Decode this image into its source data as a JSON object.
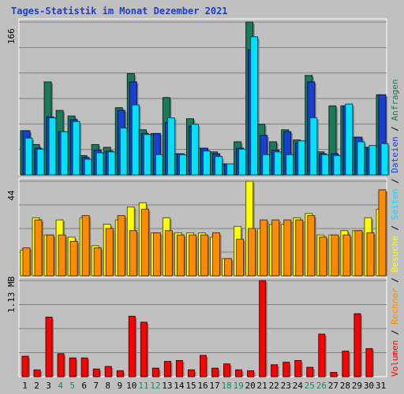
{
  "window": {
    "title": "Tages-Statistik im Monat Dezember 2021"
  },
  "colors": {
    "background": "#c0c0c0",
    "plot_background": "#c0c0c0",
    "gridline": "#808080",
    "title": "#1a3fd0",
    "anfragen": "#1a7a5a",
    "dateien": "#1a3fd0",
    "seiten": "#00e0ff",
    "besuche": "#ffff00",
    "rechner": "#ff8c00",
    "volumen": "#ff0000",
    "weekend_label": "#1a8a5a",
    "weekday_label": "#000000"
  },
  "chart_data": [
    {
      "type": "bar",
      "panel": "top",
      "categories": [
        "1",
        "2",
        "3",
        "4",
        "5",
        "6",
        "7",
        "8",
        "9",
        "10",
        "11",
        "12",
        "13",
        "14",
        "15",
        "16",
        "17",
        "18",
        "19",
        "20",
        "21",
        "22",
        "23",
        "24",
        "25",
        "26",
        "27",
        "28",
        "29",
        "30",
        "31"
      ],
      "weekend_days": [
        "4",
        "5",
        "11",
        "12",
        "18",
        "19",
        "25",
        "26"
      ],
      "ymax_label": "166",
      "ylim": [
        0,
        166
      ],
      "series": [
        {
          "name": "Anfragen",
          "color": "#1a7a5a",
          "values": [
            48,
            33,
            101,
            70,
            64,
            21,
            33,
            30,
            73,
            110,
            49,
            45,
            84,
            23,
            61,
            29,
            25,
            12,
            36,
            166,
            55,
            36,
            49,
            38,
            108,
            25,
            75,
            75,
            41,
            30,
            87
          ]
        },
        {
          "name": "Dateien",
          "color": "#1a3fd0",
          "values": [
            48,
            29,
            63,
            47,
            60,
            19,
            27,
            26,
            70,
            101,
            45,
            45,
            57,
            23,
            53,
            29,
            23,
            12,
            29,
            136,
            43,
            27,
            47,
            35,
            101,
            23,
            23,
            75,
            41,
            30,
            87
          ]
        },
        {
          "name": "Seiten",
          "color": "#00e0ff",
          "values": [
            40,
            28,
            62,
            47,
            58,
            17,
            24,
            25,
            51,
            76,
            44,
            22,
            62,
            22,
            55,
            26,
            20,
            12,
            28,
            150,
            22,
            25,
            22,
            37,
            62,
            22,
            21,
            77,
            36,
            32,
            34
          ]
        }
      ]
    },
    {
      "type": "bar",
      "panel": "middle",
      "ymax_label": "44",
      "ylim": [
        0,
        44
      ],
      "series": [
        {
          "name": "Besuche",
          "color": "#ffff00",
          "values": [
            12,
            27,
            19,
            26,
            18,
            27,
            14,
            24,
            26,
            32,
            34,
            20,
            27,
            20,
            20,
            20,
            18,
            8,
            23,
            44,
            22,
            24,
            24,
            27,
            29,
            19,
            19,
            21,
            21,
            27,
            31
          ]
        },
        {
          "name": "Rechner",
          "color": "#ff8c00",
          "values": [
            13,
            26,
            19,
            19,
            16,
            28,
            13,
            22,
            28,
            21,
            31,
            20,
            21,
            19,
            19,
            19,
            20,
            8,
            17,
            22,
            26,
            26,
            26,
            26,
            28,
            18,
            19,
            19,
            21,
            20,
            40
          ]
        }
      ]
    },
    {
      "type": "bar",
      "panel": "bottom",
      "ymax_label": "1.13 MB",
      "ylim": [
        0,
        1.13
      ],
      "series": [
        {
          "name": "Volumen",
          "color": "#ff0000",
          "values": [
            0.24,
            0.08,
            0.7,
            0.27,
            0.22,
            0.22,
            0.09,
            0.12,
            0.07,
            0.71,
            0.64,
            0.1,
            0.18,
            0.19,
            0.08,
            0.25,
            0.1,
            0.15,
            0.08,
            0.07,
            1.13,
            0.14,
            0.17,
            0.19,
            0.11,
            0.5,
            0.05,
            0.3,
            0.74,
            0.33,
            0.0
          ]
        }
      ]
    }
  ],
  "legend_right": [
    {
      "text": "Volumen",
      "color": "#ff0000"
    },
    {
      "text": " / ",
      "color": "#000000"
    },
    {
      "text": "Rechner",
      "color": "#ff8c00"
    },
    {
      "text": " / ",
      "color": "#000000"
    },
    {
      "text": "Besuche",
      "color": "#ffff00"
    },
    {
      "text": " / ",
      "color": "#000000"
    },
    {
      "text": "Seiten",
      "color": "#00e0ff"
    },
    {
      "text": " / ",
      "color": "#000000"
    },
    {
      "text": "Dateien",
      "color": "#1a3fd0"
    },
    {
      "text": " / ",
      "color": "#000000"
    },
    {
      "text": "Anfragen",
      "color": "#1a7a5a"
    }
  ]
}
